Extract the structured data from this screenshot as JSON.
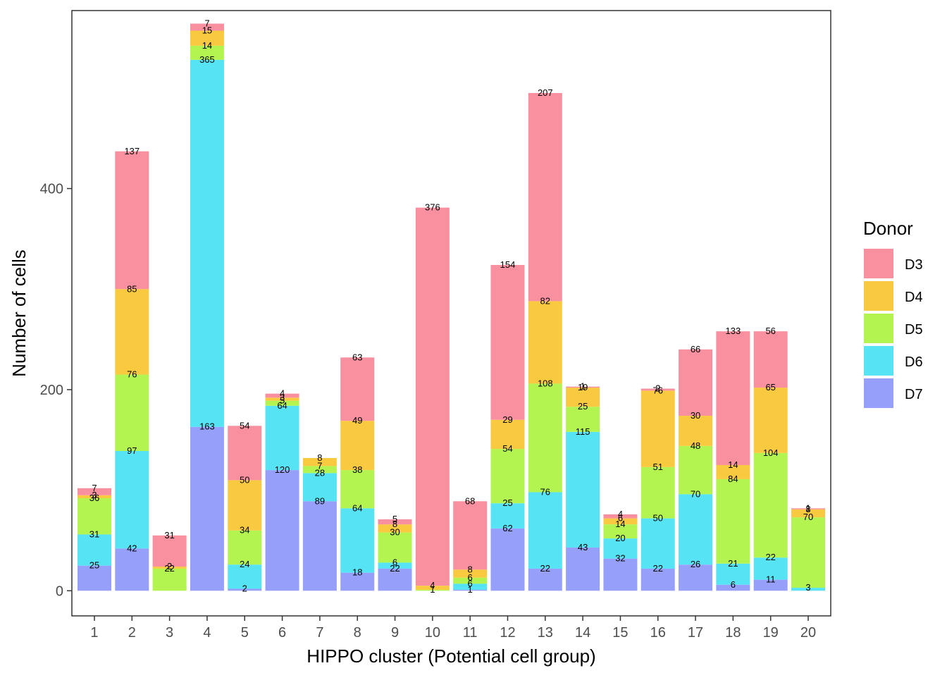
{
  "chart_data": {
    "type": "bar",
    "stacked": true,
    "xlabel": "HIPPO cluster (Potential cell group)",
    "ylabel": "Number of cells",
    "ylim": [
      -25,
      577
    ],
    "yticks": [
      0,
      200,
      400
    ],
    "grid": false,
    "legend": {
      "title": "Donor",
      "position": "right"
    },
    "categories": [
      "1",
      "2",
      "3",
      "4",
      "5",
      "6",
      "7",
      "8",
      "9",
      "10",
      "11",
      "12",
      "13",
      "14",
      "15",
      "16",
      "17",
      "18",
      "19",
      "20"
    ],
    "series": [
      {
        "name": "D7",
        "color": "#96A0FA",
        "values": [
          25,
          42,
          0,
          163,
          2,
          120,
          89,
          18,
          22,
          0,
          1,
          62,
          22,
          43,
          32,
          22,
          26,
          6,
          11,
          0
        ],
        "labels": [
          "25",
          "42",
          "",
          "163",
          "2",
          "120",
          "89",
          "18",
          "22",
          "",
          "1",
          "62",
          "22",
          "43",
          "32",
          "22",
          "26",
          "6",
          "11",
          ""
        ]
      },
      {
        "name": "D6",
        "color": "#56E4F5",
        "values": [
          31,
          97,
          0,
          365,
          24,
          64,
          28,
          64,
          6,
          0,
          6,
          25,
          76,
          115,
          20,
          50,
          70,
          21,
          22,
          3
        ],
        "labels": [
          "31",
          "97",
          "",
          "365",
          "24",
          "64",
          "28",
          "64",
          "6",
          "",
          "6",
          "25",
          "76",
          "115",
          "20",
          "50",
          "70",
          "21",
          "22",
          "3"
        ]
      },
      {
        "name": "D5",
        "color": "#B3F451",
        "values": [
          36,
          76,
          22,
          14,
          34,
          5,
          7,
          38,
          30,
          1,
          6,
          54,
          108,
          25,
          14,
          51,
          48,
          84,
          104,
          70
        ],
        "labels": [
          "36",
          "76",
          "22",
          "14",
          "34",
          "5",
          "7",
          "38",
          "30",
          "1",
          "6",
          "54",
          "108",
          "25",
          "14",
          "51",
          "48",
          "84",
          "104",
          "70"
        ]
      },
      {
        "name": "D4",
        "color": "#F9CA3F",
        "values": [
          3,
          85,
          2,
          15,
          50,
          3,
          8,
          49,
          8,
          4,
          8,
          29,
          82,
          19,
          6,
          76,
          30,
          14,
          65,
          8
        ],
        "labels": [
          "3",
          "85",
          "2",
          "15",
          "50",
          "3",
          "8",
          "49",
          "8",
          "4",
          "8",
          "29",
          "82",
          "19",
          "6",
          "76",
          "30",
          "14",
          "65",
          "8"
        ]
      },
      {
        "name": "D3",
        "color": "#F8909F",
        "values": [
          7,
          137,
          31,
          7,
          54,
          4,
          0,
          63,
          5,
          376,
          68,
          154,
          207,
          1,
          4,
          2,
          66,
          133,
          56,
          1
        ],
        "labels": [
          "7",
          "137",
          "31",
          "7",
          "54",
          "4",
          "",
          "63",
          "5",
          "376",
          "68",
          "154",
          "207",
          "1",
          "4",
          "2",
          "66",
          "133",
          "56",
          "1"
        ]
      }
    ]
  }
}
